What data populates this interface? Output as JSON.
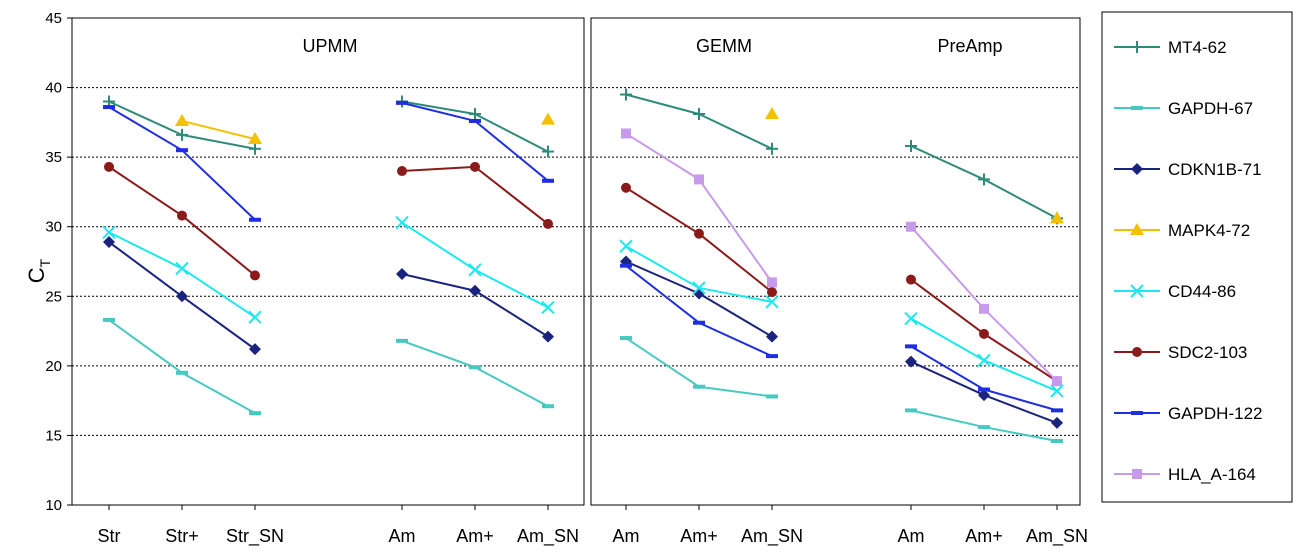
{
  "chart_data": {
    "type": "line",
    "ylabel": "C",
    "ylabel_sub": "T",
    "ylim": [
      10,
      45
    ],
    "yticks": [
      10,
      15,
      20,
      25,
      30,
      35,
      40,
      45
    ],
    "grid": "horizontal dashed",
    "legend_position": "right",
    "panels": [
      {
        "title": "UPMM",
        "groups": [
          {
            "categories": [
              "Str",
              "Str+",
              "Str_SN"
            ]
          },
          {
            "categories": [
              "Am",
              "Am+",
              "Am_SN"
            ]
          }
        ]
      },
      {
        "title": "GEMM",
        "groups": [
          {
            "categories": [
              "Am",
              "Am+",
              "Am_SN"
            ]
          }
        ]
      },
      {
        "title": "PreAmp",
        "groups": [
          {
            "categories": [
              "Am",
              "Am+",
              "Am_SN"
            ]
          }
        ]
      }
    ],
    "series": [
      {
        "name": "MT4-62",
        "color": "#2E8B7A",
        "marker": "plus",
        "groups": [
          [
            39.0,
            36.6,
            35.6
          ],
          [
            39.0,
            38.1,
            35.4
          ],
          [
            39.5,
            38.1,
            35.6
          ],
          [
            35.8,
            33.4,
            30.6
          ]
        ]
      },
      {
        "name": "GAPDH-67",
        "color": "#48C9C0",
        "marker": "dash",
        "groups": [
          [
            23.3,
            19.5,
            16.6
          ],
          [
            21.8,
            19.9,
            17.1
          ],
          [
            22.0,
            18.5,
            17.8
          ],
          [
            16.8,
            15.6,
            14.6
          ]
        ]
      },
      {
        "name": "CDKN1B-71",
        "color": "#1A237E",
        "marker": "diamond",
        "groups": [
          [
            28.9,
            25.0,
            21.2
          ],
          [
            26.6,
            25.4,
            22.1
          ],
          [
            27.5,
            25.2,
            22.1
          ],
          [
            20.3,
            17.9,
            15.9
          ]
        ]
      },
      {
        "name": "MAPK4-72",
        "color": "#F5C000",
        "marker": "triangle",
        "groups": [
          [
            null,
            37.6,
            36.3
          ],
          [
            null,
            null,
            37.7
          ],
          [
            null,
            null,
            38.1
          ],
          [
            null,
            null,
            30.6
          ]
        ]
      },
      {
        "name": "CD44-86",
        "color": "#1CE8F0",
        "marker": "x",
        "groups": [
          [
            29.6,
            27.0,
            23.5
          ],
          [
            30.3,
            26.9,
            24.2
          ],
          [
            28.6,
            25.6,
            24.6
          ],
          [
            23.4,
            20.4,
            18.2
          ]
        ]
      },
      {
        "name": "SDC2-103",
        "color": "#8B1A1A",
        "marker": "circle",
        "groups": [
          [
            34.3,
            30.8,
            26.5
          ],
          [
            34.0,
            34.3,
            30.2
          ],
          [
            32.8,
            29.5,
            25.3
          ],
          [
            26.2,
            22.3,
            18.9
          ]
        ]
      },
      {
        "name": "GAPDH-122",
        "color": "#1F2FE0",
        "marker": "dash",
        "groups": [
          [
            38.6,
            35.5,
            30.5
          ],
          [
            38.9,
            37.6,
            33.3
          ],
          [
            27.2,
            23.1,
            20.7
          ],
          [
            21.4,
            18.3,
            16.8
          ]
        ]
      },
      {
        "name": "HLA_A-164",
        "color": "#C79BEA",
        "marker": "square",
        "groups": [
          [
            null,
            null,
            null
          ],
          [
            null,
            null,
            null
          ],
          [
            36.7,
            33.4,
            26.0
          ],
          [
            30.0,
            24.1,
            18.9
          ]
        ]
      }
    ]
  }
}
